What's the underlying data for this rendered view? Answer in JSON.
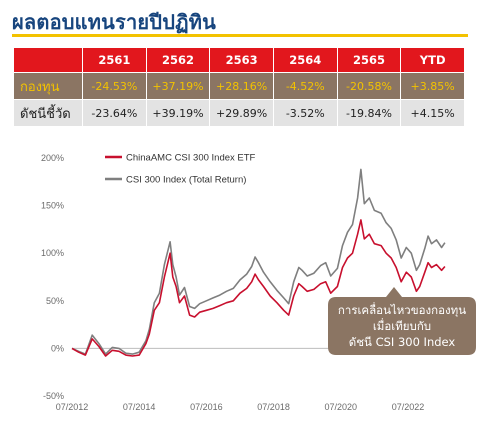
{
  "title": "ผลตอบแทนรายปีปฏิทิน",
  "table": {
    "headers": [
      "",
      "2561",
      "2562",
      "2563",
      "2564",
      "2565",
      "YTD"
    ],
    "rows": [
      {
        "label": "กองทุน",
        "values": [
          "-24.53%",
          "+37.19%",
          "+28.16%",
          "-4.52%",
          "-20.58%",
          "+3.85%"
        ]
      },
      {
        "label": "ดัชนีชี้วัด",
        "values": [
          "-23.64%",
          "+39.19%",
          "+29.89%",
          "-3.52%",
          "-19.84%",
          "+4.15%"
        ]
      }
    ]
  },
  "chart_data": {
    "type": "line",
    "title": "",
    "xlabel": "",
    "ylabel": "",
    "x_ticks": [
      "07/2012",
      "07/2014",
      "07/2016",
      "07/2018",
      "07/2020",
      "07/2022"
    ],
    "y_ticks": [
      "200%",
      "150%",
      "100%",
      "50%",
      "0%",
      "-50%"
    ],
    "ylim": [
      -50,
      200
    ],
    "xlim": [
      2012.5,
      2023.9
    ],
    "grid": false,
    "legend": "top-left",
    "series": [
      {
        "name": "ChinaAMC CSI 300 Index ETF",
        "color": "#c8102e",
        "points": [
          [
            2012.5,
            0
          ],
          [
            2012.7,
            -4
          ],
          [
            2012.9,
            -7
          ],
          [
            2013.1,
            10
          ],
          [
            2013.3,
            2
          ],
          [
            2013.5,
            -8
          ],
          [
            2013.7,
            -2
          ],
          [
            2013.9,
            -3
          ],
          [
            2014.1,
            -7
          ],
          [
            2014.3,
            -8
          ],
          [
            2014.5,
            -7
          ],
          [
            2014.7,
            5
          ],
          [
            2014.8,
            15
          ],
          [
            2014.95,
            40
          ],
          [
            2015.1,
            48
          ],
          [
            2015.25,
            75
          ],
          [
            2015.42,
            100
          ],
          [
            2015.5,
            75
          ],
          [
            2015.6,
            65
          ],
          [
            2015.7,
            48
          ],
          [
            2015.85,
            55
          ],
          [
            2016.0,
            35
          ],
          [
            2016.15,
            33
          ],
          [
            2016.3,
            38
          ],
          [
            2016.5,
            40
          ],
          [
            2016.7,
            42
          ],
          [
            2016.9,
            45
          ],
          [
            2017.1,
            48
          ],
          [
            2017.3,
            50
          ],
          [
            2017.5,
            58
          ],
          [
            2017.7,
            63
          ],
          [
            2017.85,
            70
          ],
          [
            2017.95,
            78
          ],
          [
            2018.05,
            72
          ],
          [
            2018.2,
            65
          ],
          [
            2018.4,
            55
          ],
          [
            2018.6,
            48
          ],
          [
            2018.8,
            40
          ],
          [
            2018.95,
            35
          ],
          [
            2019.1,
            55
          ],
          [
            2019.25,
            68
          ],
          [
            2019.35,
            65
          ],
          [
            2019.5,
            60
          ],
          [
            2019.7,
            62
          ],
          [
            2019.9,
            68
          ],
          [
            2020.05,
            70
          ],
          [
            2020.2,
            58
          ],
          [
            2020.4,
            65
          ],
          [
            2020.55,
            85
          ],
          [
            2020.7,
            95
          ],
          [
            2020.85,
            100
          ],
          [
            2021.0,
            120
          ],
          [
            2021.1,
            135
          ],
          [
            2021.2,
            115
          ],
          [
            2021.35,
            120
          ],
          [
            2021.5,
            110
          ],
          [
            2021.7,
            108
          ],
          [
            2021.85,
            100
          ],
          [
            2022.0,
            95
          ],
          [
            2022.15,
            85
          ],
          [
            2022.3,
            70
          ],
          [
            2022.45,
            80
          ],
          [
            2022.6,
            75
          ],
          [
            2022.75,
            60
          ],
          [
            2022.85,
            65
          ],
          [
            2023.0,
            80
          ],
          [
            2023.1,
            90
          ],
          [
            2023.2,
            85
          ],
          [
            2023.35,
            88
          ],
          [
            2023.5,
            82
          ],
          [
            2023.6,
            86
          ]
        ]
      },
      {
        "name": "CSI 300 Index (Total Return)",
        "color": "#7f7f7f",
        "points": [
          [
            2012.5,
            0
          ],
          [
            2012.7,
            -3
          ],
          [
            2012.9,
            -6
          ],
          [
            2013.1,
            14
          ],
          [
            2013.3,
            5
          ],
          [
            2013.5,
            -6
          ],
          [
            2013.7,
            1
          ],
          [
            2013.9,
            0
          ],
          [
            2014.1,
            -5
          ],
          [
            2014.3,
            -6
          ],
          [
            2014.5,
            -4
          ],
          [
            2014.7,
            8
          ],
          [
            2014.8,
            20
          ],
          [
            2014.95,
            48
          ],
          [
            2015.1,
            58
          ],
          [
            2015.25,
            88
          ],
          [
            2015.42,
            112
          ],
          [
            2015.5,
            88
          ],
          [
            2015.6,
            75
          ],
          [
            2015.7,
            56
          ],
          [
            2015.85,
            64
          ],
          [
            2016.0,
            44
          ],
          [
            2016.15,
            42
          ],
          [
            2016.3,
            47
          ],
          [
            2016.5,
            50
          ],
          [
            2016.7,
            53
          ],
          [
            2016.9,
            56
          ],
          [
            2017.1,
            60
          ],
          [
            2017.3,
            63
          ],
          [
            2017.5,
            72
          ],
          [
            2017.7,
            78
          ],
          [
            2017.85,
            86
          ],
          [
            2017.95,
            96
          ],
          [
            2018.05,
            90
          ],
          [
            2018.2,
            80
          ],
          [
            2018.4,
            70
          ],
          [
            2018.6,
            61
          ],
          [
            2018.8,
            53
          ],
          [
            2018.95,
            47
          ],
          [
            2019.1,
            70
          ],
          [
            2019.25,
            85
          ],
          [
            2019.35,
            82
          ],
          [
            2019.5,
            76
          ],
          [
            2019.7,
            79
          ],
          [
            2019.9,
            87
          ],
          [
            2020.05,
            90
          ],
          [
            2020.2,
            76
          ],
          [
            2020.4,
            84
          ],
          [
            2020.55,
            108
          ],
          [
            2020.7,
            122
          ],
          [
            2020.85,
            130
          ],
          [
            2021.0,
            158
          ],
          [
            2021.1,
            188
          ],
          [
            2021.2,
            152
          ],
          [
            2021.35,
            158
          ],
          [
            2021.5,
            145
          ],
          [
            2021.7,
            142
          ],
          [
            2021.85,
            132
          ],
          [
            2022.0,
            126
          ],
          [
            2022.15,
            114
          ],
          [
            2022.3,
            95
          ],
          [
            2022.45,
            106
          ],
          [
            2022.6,
            100
          ],
          [
            2022.75,
            82
          ],
          [
            2022.85,
            88
          ],
          [
            2023.0,
            105
          ],
          [
            2023.1,
            118
          ],
          [
            2023.2,
            110
          ],
          [
            2023.35,
            114
          ],
          [
            2023.5,
            106
          ],
          [
            2023.6,
            111
          ]
        ]
      }
    ]
  },
  "callout": {
    "lines": [
      "การเคลื่อนไหวของกองทุน",
      "เมื่อเทียบกับ",
      "ดัชนี CSI 300 Index"
    ],
    "color": "#8b7563"
  }
}
